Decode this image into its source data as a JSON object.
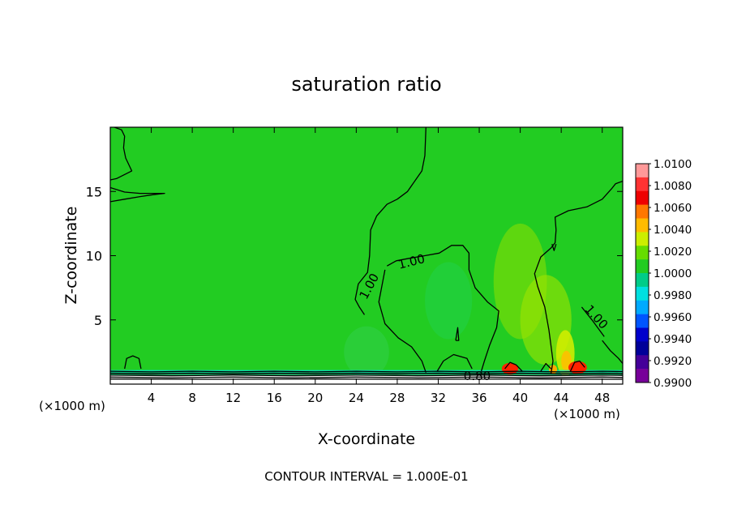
{
  "chart_data": {
    "type": "heatmap",
    "title": "saturation ratio",
    "xlabel": "X-coordinate",
    "ylabel": "Z-coordinate",
    "x_unit_left": "(×1000 m)",
    "x_unit_right": "(×1000 m)",
    "xlim": [
      0,
      50
    ],
    "ylim": [
      0,
      20
    ],
    "x_ticks": [
      4,
      8,
      12,
      16,
      20,
      24,
      28,
      32,
      36,
      40,
      44,
      48
    ],
    "y_ticks": [
      5,
      10,
      15
    ],
    "footer": "CONTOUR INTERVAL = 1.000E-01",
    "background_value": 1.0005,
    "colorbar": {
      "labels": [
        "1.0100",
        "1.0080",
        "1.0060",
        "1.0040",
        "1.0020",
        "1.0000",
        "0.9980",
        "0.9960",
        "0.9940",
        "0.9920",
        "0.9900"
      ],
      "colors": [
        "#ff9999",
        "#ff3333",
        "#ee0000",
        "#ff7700",
        "#ffbb00",
        "#ccee00",
        "#66dd00",
        "#22cc22",
        "#00cc88",
        "#00e0e0",
        "#00aaff",
        "#0055ff",
        "#0000cc",
        "#000099",
        "#440099",
        "#770099"
      ]
    },
    "contour_labels": [
      {
        "text": "1.00",
        "x": 25.3,
        "z": 7.6,
        "rotate": -62
      },
      {
        "text": "1.00",
        "x": 29.4,
        "z": 9.5,
        "rotate": -14
      },
      {
        "text": "1.00",
        "x": 47.4,
        "z": 5.2,
        "rotate": 48
      },
      {
        "text": "0.80",
        "x": 35.8,
        "z": 0.6,
        "rotate": 0
      }
    ],
    "contours": [
      [
        [
          0.4,
          20
        ],
        [
          1.1,
          19.8
        ],
        [
          1.4,
          19.3
        ],
        [
          1.3,
          18.4
        ],
        [
          1.5,
          17.6
        ],
        [
          2.1,
          16.6
        ],
        [
          0.6,
          16.0
        ],
        [
          0,
          15.9
        ]
      ],
      [
        [
          0,
          15.3
        ],
        [
          1.4,
          14.95
        ],
        [
          2.9,
          14.85
        ],
        [
          4.2,
          14.85
        ],
        [
          5.3,
          14.85
        ],
        [
          4.2,
          14.75
        ],
        [
          2.9,
          14.6
        ],
        [
          1.4,
          14.4
        ],
        [
          0,
          14.2
        ]
      ],
      [
        [
          30.8,
          20
        ],
        [
          30.7,
          17.8
        ],
        [
          30.4,
          16.6
        ],
        [
          29.7,
          15.8
        ],
        [
          29.0,
          15.0
        ],
        [
          28.0,
          14.4
        ],
        [
          27.0,
          14.0
        ],
        [
          26.0,
          13.1
        ],
        [
          25.4,
          12.0
        ],
        [
          25.3,
          10.0
        ],
        [
          25.1,
          8.7
        ],
        [
          24.2,
          7.8
        ],
        [
          23.9,
          6.6
        ],
        [
          24.3,
          6.0
        ],
        [
          24.8,
          5.4
        ]
      ],
      [
        [
          26.8,
          8.9
        ],
        [
          26.2,
          6.4
        ],
        [
          26.8,
          4.7
        ],
        [
          28.1,
          3.6
        ],
        [
          29.4,
          2.9
        ],
        [
          30.4,
          1.8
        ],
        [
          30.8,
          0.9
        ]
      ],
      [
        [
          27.0,
          9.2
        ],
        [
          27.9,
          9.6
        ],
        [
          29.2,
          9.8
        ],
        [
          30.7,
          10.0
        ],
        [
          32.1,
          10.2
        ],
        [
          33.3,
          10.8
        ],
        [
          34.4,
          10.8
        ],
        [
          35.0,
          10.2
        ],
        [
          35.0,
          8.9
        ],
        [
          35.6,
          7.5
        ],
        [
          36.8,
          6.4
        ],
        [
          37.9,
          5.7
        ],
        [
          37.7,
          4.4
        ],
        [
          37.0,
          3.0
        ],
        [
          36.5,
          1.8
        ],
        [
          36.2,
          1.0
        ]
      ],
      [
        [
          31.9,
          1.0
        ],
        [
          32.5,
          1.8
        ],
        [
          33.5,
          2.3
        ],
        [
          34.8,
          2.0
        ],
        [
          35.3,
          1.2
        ]
      ],
      [
        [
          33.7,
          3.4
        ],
        [
          33.9,
          4.4
        ],
        [
          34.0,
          3.4
        ],
        [
          33.7,
          3.4
        ]
      ],
      [
        [
          43.0,
          0.8
        ],
        [
          43.2,
          1.8
        ],
        [
          43.0,
          3.0
        ],
        [
          42.8,
          4.2
        ],
        [
          42.4,
          6.0
        ],
        [
          41.7,
          7.6
        ],
        [
          41.4,
          8.6
        ],
        [
          42.0,
          9.9
        ],
        [
          43.0,
          10.6
        ],
        [
          43.4,
          11.0
        ],
        [
          43.5,
          12.0
        ],
        [
          43.4,
          13.0
        ],
        [
          44.7,
          13.5
        ],
        [
          46.5,
          13.8
        ],
        [
          48.0,
          14.4
        ],
        [
          48.9,
          15.2
        ],
        [
          49.3,
          15.6
        ],
        [
          50,
          15.8
        ]
      ],
      [
        [
          48.0,
          3.4
        ],
        [
          48.8,
          2.6
        ],
        [
          49.6,
          2.0
        ],
        [
          50,
          1.6
        ]
      ],
      [
        [
          46.0,
          6.0
        ],
        [
          47.0,
          5.0
        ],
        [
          48.2,
          3.7
        ]
      ],
      [
        [
          43.1,
          10.9
        ],
        [
          43.3,
          10.4
        ],
        [
          43.5,
          10.9
        ]
      ],
      [
        [
          1.4,
          1.2
        ],
        [
          1.6,
          2.0
        ],
        [
          2.2,
          2.2
        ],
        [
          2.8,
          2.0
        ],
        [
          3.0,
          1.2
        ]
      ],
      [
        [
          0,
          1.0
        ],
        [
          4,
          0.95
        ],
        [
          8,
          1.0
        ],
        [
          12,
          0.95
        ],
        [
          16,
          1.0
        ],
        [
          20,
          0.95
        ],
        [
          24,
          1.0
        ],
        [
          28,
          0.95
        ],
        [
          32,
          1.0
        ],
        [
          36,
          0.95
        ],
        [
          40,
          1.0
        ],
        [
          44,
          0.95
        ],
        [
          48,
          1.0
        ],
        [
          50,
          0.98
        ]
      ],
      [
        [
          0,
          0.85
        ],
        [
          4,
          0.8
        ],
        [
          8,
          0.85
        ],
        [
          12,
          0.8
        ],
        [
          16,
          0.85
        ],
        [
          20,
          0.8
        ],
        [
          24,
          0.85
        ],
        [
          28,
          0.8
        ],
        [
          32,
          0.85
        ],
        [
          36,
          0.8
        ],
        [
          40,
          0.85
        ],
        [
          44,
          0.8
        ],
        [
          48,
          0.85
        ],
        [
          50,
          0.82
        ]
      ],
      [
        [
          0,
          0.7
        ],
        [
          6,
          0.65
        ],
        [
          12,
          0.7
        ],
        [
          18,
          0.65
        ],
        [
          24,
          0.7
        ],
        [
          30,
          0.65
        ],
        [
          36,
          0.7
        ],
        [
          42,
          0.65
        ],
        [
          48,
          0.7
        ],
        [
          50,
          0.68
        ]
      ],
      [
        [
          0,
          0.55
        ],
        [
          6,
          0.5
        ],
        [
          12,
          0.55
        ],
        [
          18,
          0.5
        ],
        [
          24,
          0.55
        ],
        [
          30,
          0.5
        ],
        [
          36,
          0.55
        ],
        [
          42,
          0.5
        ],
        [
          48,
          0.55
        ],
        [
          50,
          0.52
        ]
      ],
      [
        [
          0,
          0.4
        ],
        [
          10,
          0.38
        ],
        [
          20,
          0.4
        ],
        [
          30,
          0.38
        ],
        [
          40,
          0.4
        ],
        [
          50,
          0.38
        ]
      ],
      [
        [
          38.5,
          1.2
        ],
        [
          39.0,
          1.7
        ],
        [
          39.6,
          1.5
        ],
        [
          40.2,
          1.0
        ]
      ],
      [
        [
          42.0,
          1.0
        ],
        [
          42.5,
          1.6
        ],
        [
          43.0,
          1.2
        ]
      ],
      [
        [
          44.9,
          1.0
        ],
        [
          45.3,
          1.7
        ],
        [
          45.8,
          1.8
        ],
        [
          46.3,
          1.3
        ]
      ]
    ],
    "blobs": [
      {
        "x": 40.0,
        "z": 8.0,
        "rx": 2.6,
        "rz": 4.5,
        "color": "#8fe000",
        "opacity": 0.55
      },
      {
        "x": 42.5,
        "z": 5.0,
        "rx": 2.5,
        "rz": 3.5,
        "color": "#a0e400",
        "opacity": 0.6
      },
      {
        "x": 44.4,
        "z": 2.4,
        "rx": 0.9,
        "rz": 1.8,
        "color": "#d6ee00",
        "opacity": 0.85
      },
      {
        "x": 44.5,
        "z": 1.8,
        "rx": 0.5,
        "rz": 0.8,
        "color": "#ffc000",
        "opacity": 0.9
      },
      {
        "x": 33.0,
        "z": 6.5,
        "rx": 2.3,
        "rz": 3.0,
        "color": "#22d255",
        "opacity": 0.45
      },
      {
        "x": 25.0,
        "z": 2.5,
        "rx": 2.2,
        "rz": 2.0,
        "color": "#3ad060",
        "opacity": 0.35
      }
    ],
    "surface_hot_spots": [
      {
        "x": 39.0,
        "z": 1.2,
        "rx": 0.8,
        "rz": 0.45,
        "color": "#ff2200"
      },
      {
        "x": 45.6,
        "z": 1.3,
        "rx": 0.9,
        "rz": 0.5,
        "color": "#ff2200"
      },
      {
        "x": 43.2,
        "z": 1.15,
        "rx": 0.4,
        "rz": 0.35,
        "color": "#ffaa00"
      }
    ],
    "surface_band_colors": [
      "#00dddd",
      "#00aaff",
      "#ffffff"
    ]
  }
}
